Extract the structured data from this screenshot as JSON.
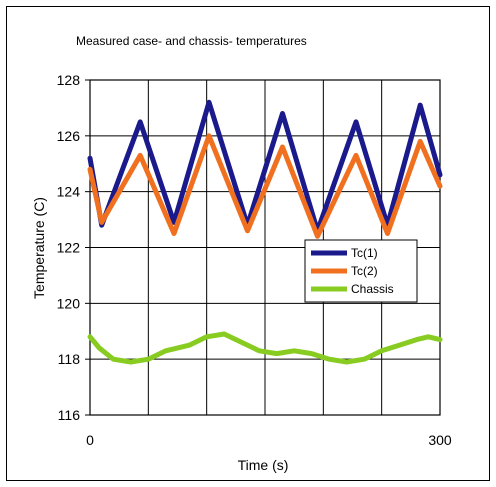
{
  "chart_data": {
    "type": "line",
    "title": "Measured case- and chassis- temperatures",
    "xlabel": "Time (s)",
    "ylabel": "Temperature (C)",
    "xlim": [
      0,
      300
    ],
    "ylim": [
      116,
      128
    ],
    "x_gridlines": [
      0,
      50,
      100,
      150,
      200,
      250,
      300
    ],
    "xticks": [
      "0",
      "300"
    ],
    "yticks": [
      "116",
      "118",
      "120",
      "122",
      "124",
      "126",
      "128"
    ],
    "grid": true,
    "legend_position": "right-center",
    "series": [
      {
        "name": "Tc(1)",
        "color": "#1a1a8c",
        "x": [
          0,
          10,
          43,
          72,
          102,
          135,
          165,
          195,
          228,
          255,
          283,
          300
        ],
        "y": [
          125.2,
          122.8,
          126.5,
          122.9,
          127.2,
          122.8,
          126.8,
          122.6,
          126.5,
          122.8,
          127.1,
          124.6
        ]
      },
      {
        "name": "Tc(2)",
        "color": "#f07020",
        "x": [
          0,
          10,
          43,
          72,
          102,
          135,
          165,
          195,
          228,
          255,
          283,
          300
        ],
        "y": [
          124.8,
          122.9,
          125.3,
          122.5,
          126.0,
          122.6,
          125.6,
          122.4,
          125.3,
          122.5,
          125.8,
          124.2
        ]
      },
      {
        "name": "Chassis",
        "color": "#88cc22",
        "x": [
          0,
          8,
          20,
          35,
          50,
          65,
          85,
          100,
          115,
          130,
          145,
          160,
          175,
          190,
          205,
          220,
          235,
          250,
          265,
          280,
          290,
          300
        ],
        "y": [
          118.8,
          118.4,
          118.0,
          117.9,
          118.0,
          118.3,
          118.5,
          118.8,
          118.9,
          118.6,
          118.3,
          118.2,
          118.3,
          118.2,
          118.0,
          117.9,
          118.0,
          118.3,
          118.5,
          118.7,
          118.8,
          118.7
        ]
      }
    ]
  }
}
